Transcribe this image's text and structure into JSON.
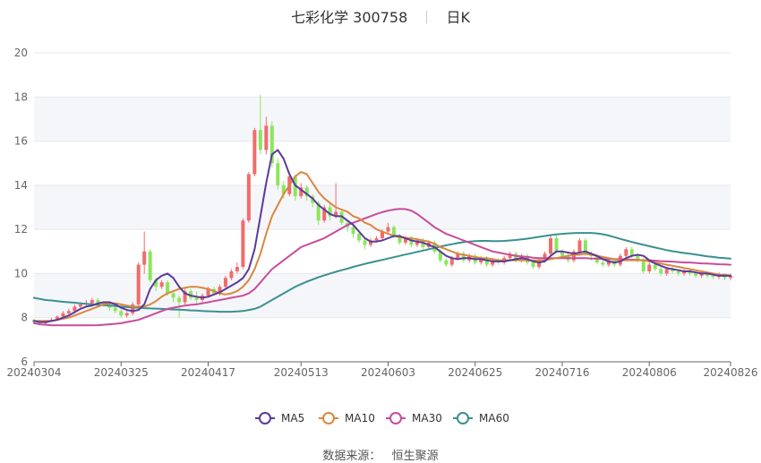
{
  "title": {
    "stock_name": "七彩化学",
    "stock_code": "300758",
    "period": "日K"
  },
  "source": {
    "label": "数据来源：",
    "name": "恒生聚源"
  },
  "chart_data": {
    "type": "candlestick",
    "y_axis": {
      "min": 6,
      "max": 20,
      "ticks": [
        6,
        8,
        10,
        12,
        14,
        16,
        18,
        20
      ]
    },
    "x_tick_labels": [
      "20240304",
      "20240325",
      "20240417",
      "20240513",
      "20240603",
      "20240625",
      "20240716",
      "20240806",
      "20240826"
    ],
    "x_tick_indices": [
      0,
      15,
      30,
      46,
      61,
      76,
      91,
      106,
      120
    ],
    "legend": [
      {
        "name": "MA5",
        "color": "#5b3a9a"
      },
      {
        "name": "MA10",
        "color": "#d9883e"
      },
      {
        "name": "MA30",
        "color": "#c84c9c"
      },
      {
        "name": "MA60",
        "color": "#3b9090"
      }
    ],
    "colors": {
      "up": "#f26b6b",
      "down": "#8ae65c",
      "grid_band": "#f5f6fa",
      "axis": "#666666"
    },
    "candles": [
      [
        7.9,
        7.8,
        7.95,
        7.7
      ],
      [
        7.8,
        7.75,
        7.9,
        7.65
      ],
      [
        7.75,
        7.85,
        7.9,
        7.7
      ],
      [
        7.85,
        7.9,
        8.0,
        7.8
      ],
      [
        7.9,
        8.05,
        8.1,
        7.85
      ],
      [
        8.05,
        8.2,
        8.3,
        8.0
      ],
      [
        8.2,
        8.3,
        8.4,
        8.1
      ],
      [
        8.3,
        8.5,
        8.6,
        8.2
      ],
      [
        8.5,
        8.6,
        8.7,
        8.4
      ],
      [
        8.6,
        8.65,
        8.8,
        8.5
      ],
      [
        8.65,
        8.8,
        8.9,
        8.6
      ],
      [
        8.8,
        8.7,
        8.9,
        8.6
      ],
      [
        8.7,
        8.6,
        8.75,
        8.5
      ],
      [
        8.6,
        8.45,
        8.7,
        8.3
      ],
      [
        8.45,
        8.3,
        8.5,
        8.2
      ],
      [
        8.3,
        8.1,
        8.4,
        8.0
      ],
      [
        8.1,
        8.2,
        8.3,
        8.0
      ],
      [
        8.2,
        8.6,
        8.7,
        8.1
      ],
      [
        8.6,
        10.4,
        10.5,
        8.5
      ],
      [
        10.4,
        11.0,
        11.9,
        10.0
      ],
      [
        11.0,
        9.7,
        11.1,
        9.6
      ],
      [
        9.7,
        9.4,
        9.8,
        9.2
      ],
      [
        9.4,
        9.6,
        9.7,
        9.3
      ],
      [
        9.6,
        9.1,
        9.7,
        9.0
      ],
      [
        9.1,
        8.9,
        9.2,
        8.7
      ],
      [
        8.9,
        8.7,
        9.0,
        8.0
      ],
      [
        8.7,
        9.2,
        9.3,
        8.6
      ],
      [
        9.2,
        8.9,
        9.3,
        8.8
      ],
      [
        8.9,
        8.8,
        9.2,
        8.6
      ],
      [
        8.8,
        9.0,
        9.1,
        8.7
      ],
      [
        9.0,
        9.3,
        9.4,
        8.9
      ],
      [
        9.3,
        9.1,
        9.4,
        9.0
      ],
      [
        9.1,
        9.4,
        9.5,
        9.0
      ],
      [
        9.4,
        9.8,
        9.9,
        9.3
      ],
      [
        9.8,
        10.1,
        10.2,
        9.7
      ],
      [
        10.1,
        10.3,
        10.5,
        10.0
      ],
      [
        10.3,
        12.4,
        12.5,
        10.2
      ],
      [
        12.4,
        14.5,
        14.6,
        12.3
      ],
      [
        14.5,
        16.5,
        16.6,
        14.4
      ],
      [
        16.5,
        15.6,
        18.1,
        15.4
      ],
      [
        15.6,
        16.7,
        17.1,
        15.4
      ],
      [
        16.7,
        15.0,
        16.9,
        14.8
      ],
      [
        15.0,
        14.0,
        15.2,
        13.8
      ],
      [
        14.0,
        13.6,
        14.2,
        13.4
      ],
      [
        13.6,
        14.4,
        14.6,
        13.5
      ],
      [
        14.4,
        13.5,
        14.5,
        13.3
      ],
      [
        13.5,
        13.9,
        14.1,
        13.4
      ],
      [
        13.9,
        13.5,
        14.0,
        13.3
      ],
      [
        13.5,
        13.2,
        13.6,
        13.0
      ],
      [
        13.2,
        12.4,
        13.3,
        12.2
      ],
      [
        12.4,
        13.0,
        13.1,
        12.3
      ],
      [
        13.0,
        12.6,
        13.2,
        12.4
      ],
      [
        12.6,
        12.8,
        14.1,
        12.5
      ],
      [
        12.8,
        12.3,
        12.9,
        12.2
      ],
      [
        12.3,
        12.1,
        12.4,
        11.9
      ],
      [
        12.1,
        11.8,
        12.2,
        11.6
      ],
      [
        11.8,
        11.5,
        11.9,
        11.4
      ],
      [
        11.5,
        11.3,
        11.6,
        11.1
      ],
      [
        11.3,
        11.5,
        11.6,
        11.2
      ],
      [
        11.5,
        11.6,
        11.7,
        11.4
      ],
      [
        11.6,
        11.9,
        12.0,
        11.5
      ],
      [
        11.9,
        12.1,
        12.3,
        11.8
      ],
      [
        12.1,
        11.7,
        12.2,
        11.6
      ],
      [
        11.7,
        11.4,
        11.8,
        11.3
      ],
      [
        11.4,
        11.6,
        11.7,
        11.3
      ],
      [
        11.6,
        11.3,
        11.7,
        11.2
      ],
      [
        11.3,
        11.5,
        11.6,
        11.2
      ],
      [
        11.5,
        11.2,
        11.6,
        11.1
      ],
      [
        11.2,
        11.4,
        11.5,
        11.1
      ],
      [
        11.4,
        11.0,
        11.5,
        10.9
      ],
      [
        11.0,
        10.6,
        11.1,
        10.5
      ],
      [
        10.6,
        10.4,
        10.7,
        10.3
      ],
      [
        10.4,
        10.7,
        10.8,
        10.3
      ],
      [
        10.7,
        10.9,
        11.0,
        10.6
      ],
      [
        10.9,
        10.6,
        11.0,
        10.5
      ],
      [
        10.6,
        10.8,
        10.9,
        10.5
      ],
      [
        10.8,
        10.5,
        10.9,
        10.4
      ],
      [
        10.5,
        10.7,
        10.8,
        10.4
      ],
      [
        10.7,
        10.4,
        10.8,
        10.3
      ],
      [
        10.4,
        10.6,
        10.7,
        10.3
      ],
      [
        10.6,
        10.5,
        10.7,
        10.4
      ],
      [
        10.5,
        10.7,
        10.8,
        10.4
      ],
      [
        10.7,
        10.9,
        11.0,
        10.6
      ],
      [
        10.9,
        10.6,
        11.0,
        10.5
      ],
      [
        10.6,
        10.8,
        10.9,
        10.5
      ],
      [
        10.8,
        10.5,
        10.9,
        10.4
      ],
      [
        10.5,
        10.3,
        10.6,
        10.2
      ],
      [
        10.3,
        10.6,
        10.7,
        10.2
      ],
      [
        10.6,
        10.9,
        11.0,
        10.5
      ],
      [
        10.9,
        11.6,
        11.7,
        10.8
      ],
      [
        11.6,
        11.0,
        11.7,
        10.9
      ],
      [
        11.0,
        10.8,
        11.1,
        10.7
      ],
      [
        10.8,
        10.6,
        10.9,
        10.5
      ],
      [
        10.6,
        11.0,
        11.1,
        10.5
      ],
      [
        11.0,
        11.5,
        11.6,
        10.9
      ],
      [
        11.5,
        10.9,
        11.6,
        10.8
      ],
      [
        10.9,
        10.8,
        11.0,
        10.6
      ],
      [
        10.8,
        10.5,
        10.9,
        10.4
      ],
      [
        10.5,
        10.4,
        10.6,
        10.3
      ],
      [
        10.4,
        10.6,
        10.7,
        10.3
      ],
      [
        10.6,
        10.4,
        10.7,
        10.3
      ],
      [
        10.4,
        10.8,
        10.9,
        10.3
      ],
      [
        10.8,
        11.1,
        11.2,
        10.7
      ],
      [
        11.1,
        10.8,
        11.2,
        10.7
      ],
      [
        10.8,
        10.6,
        10.9,
        10.5
      ],
      [
        10.6,
        10.1,
        10.7,
        10.0
      ],
      [
        10.1,
        10.4,
        10.5,
        10.0
      ],
      [
        10.4,
        10.2,
        10.5,
        10.1
      ],
      [
        10.2,
        10.0,
        10.3,
        9.9
      ],
      [
        10.0,
        10.2,
        10.3,
        9.9
      ],
      [
        10.2,
        10.1,
        10.3,
        10.0
      ],
      [
        10.1,
        10.0,
        10.2,
        9.9
      ],
      [
        10.0,
        10.1,
        10.2,
        9.9
      ],
      [
        10.1,
        10.0,
        10.2,
        9.9
      ],
      [
        10.0,
        9.9,
        10.1,
        9.8
      ],
      [
        9.9,
        10.0,
        10.1,
        9.8
      ],
      [
        10.0,
        9.9,
        10.1,
        9.8
      ],
      [
        9.9,
        9.85,
        10.0,
        9.75
      ],
      [
        9.85,
        9.95,
        10.05,
        9.75
      ],
      [
        9.95,
        9.8,
        10.0,
        9.7
      ],
      [
        9.8,
        9.9,
        10.0,
        9.7
      ]
    ],
    "ma5": [
      7.85,
      7.8,
      7.8,
      7.85,
      7.9,
      8.0,
      8.1,
      8.25,
      8.4,
      8.5,
      8.55,
      8.65,
      8.7,
      8.7,
      8.6,
      8.45,
      8.35,
      8.3,
      8.35,
      8.6,
      9.3,
      9.7,
      9.9,
      10.0,
      9.8,
      9.4,
      9.1,
      9.0,
      8.95,
      8.9,
      8.95,
      9.05,
      9.15,
      9.3,
      9.45,
      9.6,
      9.8,
      10.2,
      11.1,
      12.6,
      14.1,
      15.4,
      15.6,
      15.2,
      14.5,
      14.0,
      13.8,
      13.6,
      13.4,
      13.1,
      12.9,
      12.7,
      12.6,
      12.6,
      12.4,
      12.2,
      11.9,
      11.6,
      11.45,
      11.45,
      11.5,
      11.6,
      11.7,
      11.7,
      11.6,
      11.5,
      11.45,
      11.4,
      11.3,
      11.2,
      11.0,
      10.8,
      10.7,
      10.65,
      10.7,
      10.7,
      10.65,
      10.65,
      10.6,
      10.55,
      10.55,
      10.55,
      10.6,
      10.65,
      10.7,
      10.65,
      10.55,
      10.5,
      10.55,
      10.8,
      11.0,
      11.0,
      10.95,
      10.9,
      10.95,
      11.0,
      10.9,
      10.8,
      10.65,
      10.55,
      10.5,
      10.55,
      10.7,
      10.8,
      10.85,
      10.8,
      10.6,
      10.45,
      10.35,
      10.25,
      10.2,
      10.15,
      10.1,
      10.1,
      10.05,
      10.0,
      10.0,
      9.95,
      9.9,
      9.9,
      9.9
    ],
    "ma10": [
      7.85,
      7.85,
      7.85,
      7.85,
      7.9,
      7.95,
      8.0,
      8.1,
      8.2,
      8.3,
      8.4,
      8.5,
      8.6,
      8.65,
      8.65,
      8.6,
      8.55,
      8.5,
      8.5,
      8.5,
      8.6,
      8.75,
      8.95,
      9.1,
      9.2,
      9.3,
      9.35,
      9.4,
      9.4,
      9.35,
      9.3,
      9.2,
      9.1,
      9.05,
      9.1,
      9.2,
      9.4,
      9.7,
      10.2,
      10.9,
      11.8,
      12.6,
      13.1,
      13.6,
      14.0,
      14.4,
      14.6,
      14.5,
      14.1,
      13.7,
      13.4,
      13.2,
      13.0,
      12.9,
      12.8,
      12.6,
      12.5,
      12.3,
      12.2,
      12.0,
      11.9,
      11.8,
      11.7,
      11.65,
      11.6,
      11.6,
      11.55,
      11.5,
      11.45,
      11.35,
      11.2,
      11.1,
      11.0,
      10.9,
      10.85,
      10.8,
      10.75,
      10.7,
      10.7,
      10.65,
      10.6,
      10.6,
      10.6,
      10.6,
      10.6,
      10.6,
      10.6,
      10.6,
      10.6,
      10.65,
      10.7,
      10.75,
      10.8,
      10.85,
      10.85,
      10.9,
      10.85,
      10.8,
      10.75,
      10.7,
      10.65,
      10.6,
      10.6,
      10.6,
      10.6,
      10.6,
      10.55,
      10.5,
      10.45,
      10.4,
      10.35,
      10.3,
      10.25,
      10.2,
      10.15,
      10.1,
      10.05,
      10.0,
      9.95,
      9.95,
      9.9
    ],
    "ma30": [
      7.75,
      7.7,
      7.68,
      7.65,
      7.65,
      7.65,
      7.65,
      7.65,
      7.65,
      7.65,
      7.65,
      7.66,
      7.68,
      7.7,
      7.72,
      7.75,
      7.8,
      7.85,
      7.9,
      8.0,
      8.1,
      8.2,
      8.3,
      8.4,
      8.45,
      8.5,
      8.55,
      8.58,
      8.6,
      8.65,
      8.7,
      8.75,
      8.8,
      8.85,
      8.9,
      8.95,
      9.0,
      9.1,
      9.3,
      9.6,
      9.9,
      10.2,
      10.4,
      10.6,
      10.8,
      11.0,
      11.2,
      11.3,
      11.4,
      11.5,
      11.6,
      11.75,
      11.9,
      12.05,
      12.2,
      12.3,
      12.4,
      12.5,
      12.6,
      12.7,
      12.78,
      12.85,
      12.9,
      12.93,
      12.92,
      12.85,
      12.7,
      12.5,
      12.3,
      12.1,
      11.95,
      11.8,
      11.7,
      11.6,
      11.5,
      11.4,
      11.3,
      11.2,
      11.1,
      11.0,
      10.95,
      10.9,
      10.85,
      10.8,
      10.78,
      10.75,
      10.72,
      10.7,
      10.7,
      10.7,
      10.7,
      10.7,
      10.7,
      10.7,
      10.7,
      10.7,
      10.68,
      10.68,
      10.66,
      10.66,
      10.65,
      10.65,
      10.64,
      10.63,
      10.62,
      10.6,
      10.6,
      10.58,
      10.56,
      10.55,
      10.54,
      10.52,
      10.5,
      10.5,
      10.48,
      10.46,
      10.45,
      10.44,
      10.42,
      10.41,
      10.4
    ],
    "ma60": [
      8.9,
      8.85,
      8.8,
      8.78,
      8.75,
      8.72,
      8.7,
      8.68,
      8.65,
      8.63,
      8.6,
      8.58,
      8.57,
      8.55,
      8.53,
      8.5,
      8.48,
      8.46,
      8.45,
      8.43,
      8.42,
      8.41,
      8.4,
      8.38,
      8.37,
      8.36,
      8.35,
      8.33,
      8.32,
      8.3,
      8.29,
      8.28,
      8.27,
      8.27,
      8.27,
      8.28,
      8.3,
      8.35,
      8.4,
      8.5,
      8.65,
      8.8,
      8.95,
      9.1,
      9.25,
      9.4,
      9.52,
      9.63,
      9.73,
      9.83,
      9.92,
      10.0,
      10.08,
      10.15,
      10.22,
      10.3,
      10.37,
      10.44,
      10.5,
      10.56,
      10.62,
      10.68,
      10.74,
      10.8,
      10.86,
      10.92,
      10.98,
      11.04,
      11.1,
      11.16,
      11.22,
      11.28,
      11.33,
      11.38,
      11.42,
      11.45,
      11.47,
      11.48,
      11.48,
      11.47,
      11.47,
      11.48,
      11.5,
      11.52,
      11.55,
      11.58,
      11.62,
      11.66,
      11.7,
      11.74,
      11.77,
      11.8,
      11.82,
      11.83,
      11.84,
      11.84,
      11.84,
      11.82,
      11.78,
      11.72,
      11.65,
      11.57,
      11.5,
      11.43,
      11.36,
      11.3,
      11.24,
      11.18,
      11.12,
      11.06,
      11.01,
      10.97,
      10.93,
      10.9,
      10.86,
      10.82,
      10.78,
      10.75,
      10.72,
      10.7,
      10.68
    ]
  }
}
